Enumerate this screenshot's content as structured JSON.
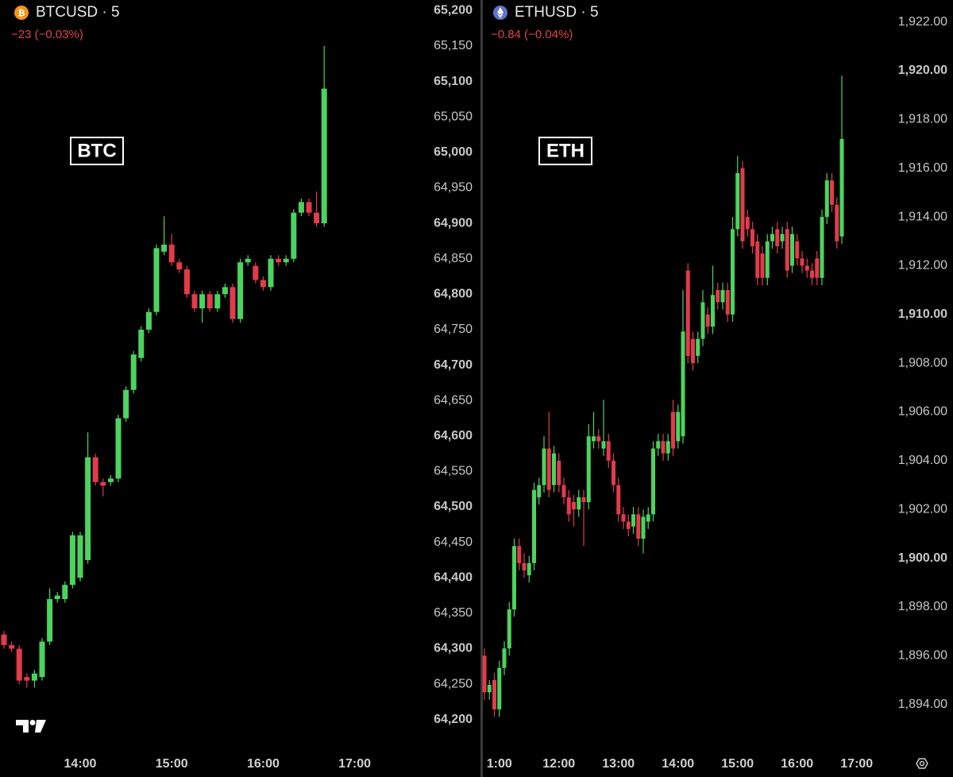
{
  "chart_data": [
    {
      "type": "candlestick",
      "title": "BTCUSD · 5",
      "subtitle": "−23 (−0.03%)",
      "annotation": "BTC",
      "categories": [
        null,
        null,
        null,
        null,
        null,
        null,
        null,
        null,
        null,
        null,
        "14:00",
        null,
        null,
        null,
        null,
        null,
        null,
        null,
        null,
        null,
        null,
        null,
        "15:00",
        null,
        null,
        null,
        null,
        null,
        null,
        null,
        null,
        null,
        null,
        null,
        "16:00",
        null,
        null,
        null,
        null,
        null,
        null,
        null,
        null,
        null,
        null,
        null,
        "17:00"
      ],
      "open": [
        64320,
        64305,
        64300,
        64260,
        64255,
        64260,
        64310,
        64370,
        64370,
        64390,
        64400,
        64425,
        64570,
        64535,
        64535,
        64540,
        64625,
        64665,
        64710,
        64750,
        64775,
        64860,
        64870,
        64845,
        64835,
        64800,
        64780,
        64800,
        64780,
        64800,
        64810,
        64765,
        64845,
        64840,
        64820,
        64810,
        64850,
        64845,
        64850,
        64915,
        64930,
        64915,
        64900,
        null,
        null,
        null,
        null
      ],
      "high": [
        64325,
        64310,
        64305,
        64265,
        64270,
        64315,
        64385,
        64380,
        64395,
        64465,
        64465,
        64605,
        64575,
        64540,
        64545,
        64630,
        64670,
        64720,
        64755,
        64780,
        64870,
        64910,
        64885,
        64850,
        64840,
        64805,
        64805,
        64805,
        64805,
        64815,
        64815,
        64850,
        64855,
        64845,
        64825,
        64855,
        64855,
        64855,
        64920,
        64935,
        64935,
        64945,
        65150,
        null,
        null,
        null,
        null
      ],
      "low": [
        64300,
        64295,
        64250,
        64245,
        64245,
        64255,
        64305,
        64365,
        64365,
        64385,
        64395,
        64420,
        64530,
        64515,
        64530,
        64535,
        64620,
        64660,
        64705,
        64745,
        64770,
        64855,
        64840,
        64830,
        64795,
        64775,
        64760,
        64775,
        64775,
        64795,
        64760,
        64760,
        64840,
        64815,
        64805,
        64805,
        64840,
        64840,
        64845,
        64910,
        64910,
        64895,
        64895,
        null,
        null,
        null,
        null
      ],
      "close": [
        64305,
        64300,
        64255,
        64255,
        64265,
        64310,
        64370,
        64375,
        64390,
        64460,
        64460,
        64570,
        64535,
        64530,
        64540,
        64625,
        64665,
        64715,
        64750,
        64775,
        64865,
        64870,
        64845,
        64835,
        64800,
        64780,
        64800,
        64780,
        64800,
        64810,
        64765,
        64845,
        64850,
        64820,
        64810,
        64850,
        64845,
        64850,
        64915,
        64930,
        64915,
        64900,
        65090,
        null,
        null,
        null,
        null
      ],
      "up_color": "#4cd35f",
      "down_color": "#e23b4c",
      "ylim": [
        64156,
        65215
      ],
      "yticks": [
        {
          "value": 64200,
          "label": "64,200"
        },
        {
          "value": 64250,
          "label": "64,250"
        },
        {
          "value": 64300,
          "label": "64,300"
        },
        {
          "value": 64350,
          "label": "64,350"
        },
        {
          "value": 64400,
          "label": "64,400"
        },
        {
          "value": 64450,
          "label": "64,450"
        },
        {
          "value": 64500,
          "label": "64,500"
        },
        {
          "value": 64550,
          "label": "64,550"
        },
        {
          "value": 64600,
          "label": "64,600"
        },
        {
          "value": 64650,
          "label": "64,650"
        },
        {
          "value": 64700,
          "label": "64,700"
        },
        {
          "value": 64750,
          "label": "64,750"
        },
        {
          "value": 64800,
          "label": "64,800"
        },
        {
          "value": 64850,
          "label": "64,850"
        },
        {
          "value": 64900,
          "label": "64,900"
        },
        {
          "value": 64950,
          "label": "64,950"
        },
        {
          "value": 65000,
          "label": "65,000"
        },
        {
          "value": 65050,
          "label": "65,050"
        },
        {
          "value": 65100,
          "label": "65,100"
        },
        {
          "value": 65150,
          "label": "65,150"
        },
        {
          "value": 65200,
          "label": "65,200"
        }
      ]
    },
    {
      "type": "candlestick",
      "title": "ETHUSD · 5",
      "subtitle": "−0.84 (−0.04%)",
      "annotation": "ETH",
      "categories": [
        null,
        null,
        null,
        "1:00",
        null,
        null,
        null,
        null,
        null,
        null,
        null,
        null,
        null,
        null,
        null,
        "12:00",
        null,
        null,
        null,
        null,
        null,
        null,
        null,
        null,
        null,
        null,
        null,
        "13:00",
        null,
        null,
        null,
        null,
        null,
        null,
        null,
        null,
        null,
        null,
        null,
        "14:00",
        null,
        null,
        null,
        null,
        null,
        null,
        null,
        null,
        null,
        null,
        null,
        "15:00",
        null,
        null,
        null,
        null,
        null,
        null,
        null,
        null,
        null,
        null,
        null,
        "16:00",
        null,
        null,
        null,
        null,
        null,
        null,
        null,
        null,
        null,
        null,
        null,
        "17:00"
      ],
      "open": [
        1896,
        1894.5,
        1895,
        1893.8,
        1895.5,
        1896.3,
        1897.9,
        1900.5,
        1899.8,
        1899.3,
        1899.8,
        1902.5,
        1903,
        1904.5,
        1903,
        1904,
        1903,
        1902.5,
        1902.3,
        1902,
        1902.5,
        1902.3,
        1904.8,
        1905,
        1904.5,
        1904.8,
        1904,
        1903,
        1901.8,
        1901.5,
        1901.3,
        1901.8,
        1900.8,
        1901.5,
        1901.8,
        1904.5,
        1904.8,
        1904.3,
        1906,
        1904.8,
        1905,
        1911.8,
        1909,
        1908.3,
        1909,
        1910,
        1909.5,
        1911,
        1910.5,
        1911,
        1910,
        1913.5,
        1916,
        1914,
        1913.5,
        1913,
        1912.5,
        1911.5,
        1913,
        1913.5,
        1913,
        1913.5,
        1912,
        1913,
        1912.3,
        1912,
        1911.8,
        1912.3,
        1911.5,
        1914,
        1915.5,
        1914.5,
        1913.2,
        null,
        null,
        null
      ],
      "high": [
        1896.3,
        1895,
        1895.3,
        1895.8,
        1896.6,
        1898.2,
        1900.8,
        1900.8,
        1900.2,
        1900.1,
        1903.1,
        1903.3,
        1905,
        1906,
        1904.6,
        1904.3,
        1903.3,
        1902.8,
        1902.6,
        1902.8,
        1902.8,
        1905.5,
        1906,
        1905.3,
        1906.5,
        1905.1,
        1904.3,
        1903.3,
        1902.1,
        1901.8,
        1902.1,
        1902.1,
        1902,
        1902.1,
        1904.8,
        1905.1,
        1905.1,
        1905.1,
        1906.5,
        1906.3,
        1911,
        1912.1,
        1909.3,
        1909.3,
        1911,
        1910.3,
        1912,
        1911.3,
        1911.3,
        1911.3,
        1914,
        1916.5,
        1916.3,
        1914.3,
        1913.8,
        1913.3,
        1912.8,
        1913.3,
        1913.6,
        1913.8,
        1913.6,
        1913.8,
        1913.6,
        1913.3,
        1912.6,
        1912.3,
        1912.1,
        1912.6,
        1914.3,
        1915.8,
        1915.8,
        1914.8,
        1919.8,
        null,
        null,
        null
      ],
      "low": [
        1894.2,
        1894.2,
        1893.5,
        1893.5,
        1895.2,
        1896,
        1897.6,
        1899.5,
        1899.2,
        1899,
        1899.5,
        1902.2,
        1902.7,
        1902.5,
        1902.7,
        1902.7,
        1902.2,
        1901.5,
        1901.3,
        1901.7,
        1900.5,
        1902,
        1904.5,
        1904.5,
        1904.2,
        1903.7,
        1902.7,
        1901.5,
        1901.2,
        1900.9,
        1901,
        1900.5,
        1900.2,
        1901.2,
        1901.5,
        1904.2,
        1904,
        1904,
        1904.2,
        1904.5,
        1904.7,
        1908,
        1907.7,
        1908,
        1908.7,
        1909.2,
        1909.2,
        1910.2,
        1910.2,
        1909.7,
        1909.7,
        1913.2,
        1912.7,
        1913.2,
        1912.5,
        1911.2,
        1911.2,
        1911.2,
        1912.7,
        1912.5,
        1912.7,
        1911.5,
        1911.7,
        1912,
        1911.7,
        1911.5,
        1911.2,
        1911.2,
        1911.2,
        1913.7,
        1914.2,
        1912.7,
        1912.9,
        null,
        null,
        null
      ],
      "close": [
        1894.5,
        1894.8,
        1893.8,
        1895.5,
        1896.3,
        1897.9,
        1900.5,
        1899.8,
        1899.5,
        1899.8,
        1902.8,
        1903,
        1904.5,
        1902.8,
        1904.3,
        1903,
        1902.5,
        1901.8,
        1902,
        1902.5,
        1902.3,
        1905,
        1905,
        1904.8,
        1904.8,
        1904,
        1903,
        1901.8,
        1901.5,
        1901.2,
        1901.8,
        1900.8,
        1901.7,
        1901.8,
        1904.5,
        1904.8,
        1904.3,
        1904.8,
        1904.5,
        1906,
        1909.3,
        1908.3,
        1908,
        1909,
        1910.5,
        1909.5,
        1910.8,
        1910.5,
        1911,
        1910,
        1913.5,
        1915.8,
        1913,
        1913.5,
        1912.8,
        1911.5,
        1911.5,
        1913,
        1913.3,
        1912.8,
        1913.3,
        1911.8,
        1913.3,
        1912.3,
        1912,
        1911.8,
        1911.5,
        1911.5,
        1914,
        1915.5,
        1914.5,
        1913,
        1917.2,
        null,
        null,
        null
      ],
      "up_color": "#4cd35f",
      "down_color": "#e23b4c",
      "ylim": [
        1892.1,
        1922.9
      ],
      "yticks": [
        {
          "value": 1894,
          "label": "1,894.00"
        },
        {
          "value": 1896,
          "label": "1,896.00"
        },
        {
          "value": 1898,
          "label": "1,898.00"
        },
        {
          "value": 1900,
          "label": "1,900.00"
        },
        {
          "value": 1902,
          "label": "1,902.00"
        },
        {
          "value": 1904,
          "label": "1,904.00"
        },
        {
          "value": 1906,
          "label": "1,906.00"
        },
        {
          "value": 1908,
          "label": "1,908.00"
        },
        {
          "value": 1910,
          "label": "1,910.00"
        },
        {
          "value": 1912,
          "label": "1,912.00"
        },
        {
          "value": 1914,
          "label": "1,914.00"
        },
        {
          "value": 1916,
          "label": "1,916.00"
        },
        {
          "value": 1918,
          "label": "1,918.00"
        },
        {
          "value": 1920,
          "label": "1,920.00"
        },
        {
          "value": 1922,
          "label": "1,922.00"
        }
      ]
    }
  ]
}
